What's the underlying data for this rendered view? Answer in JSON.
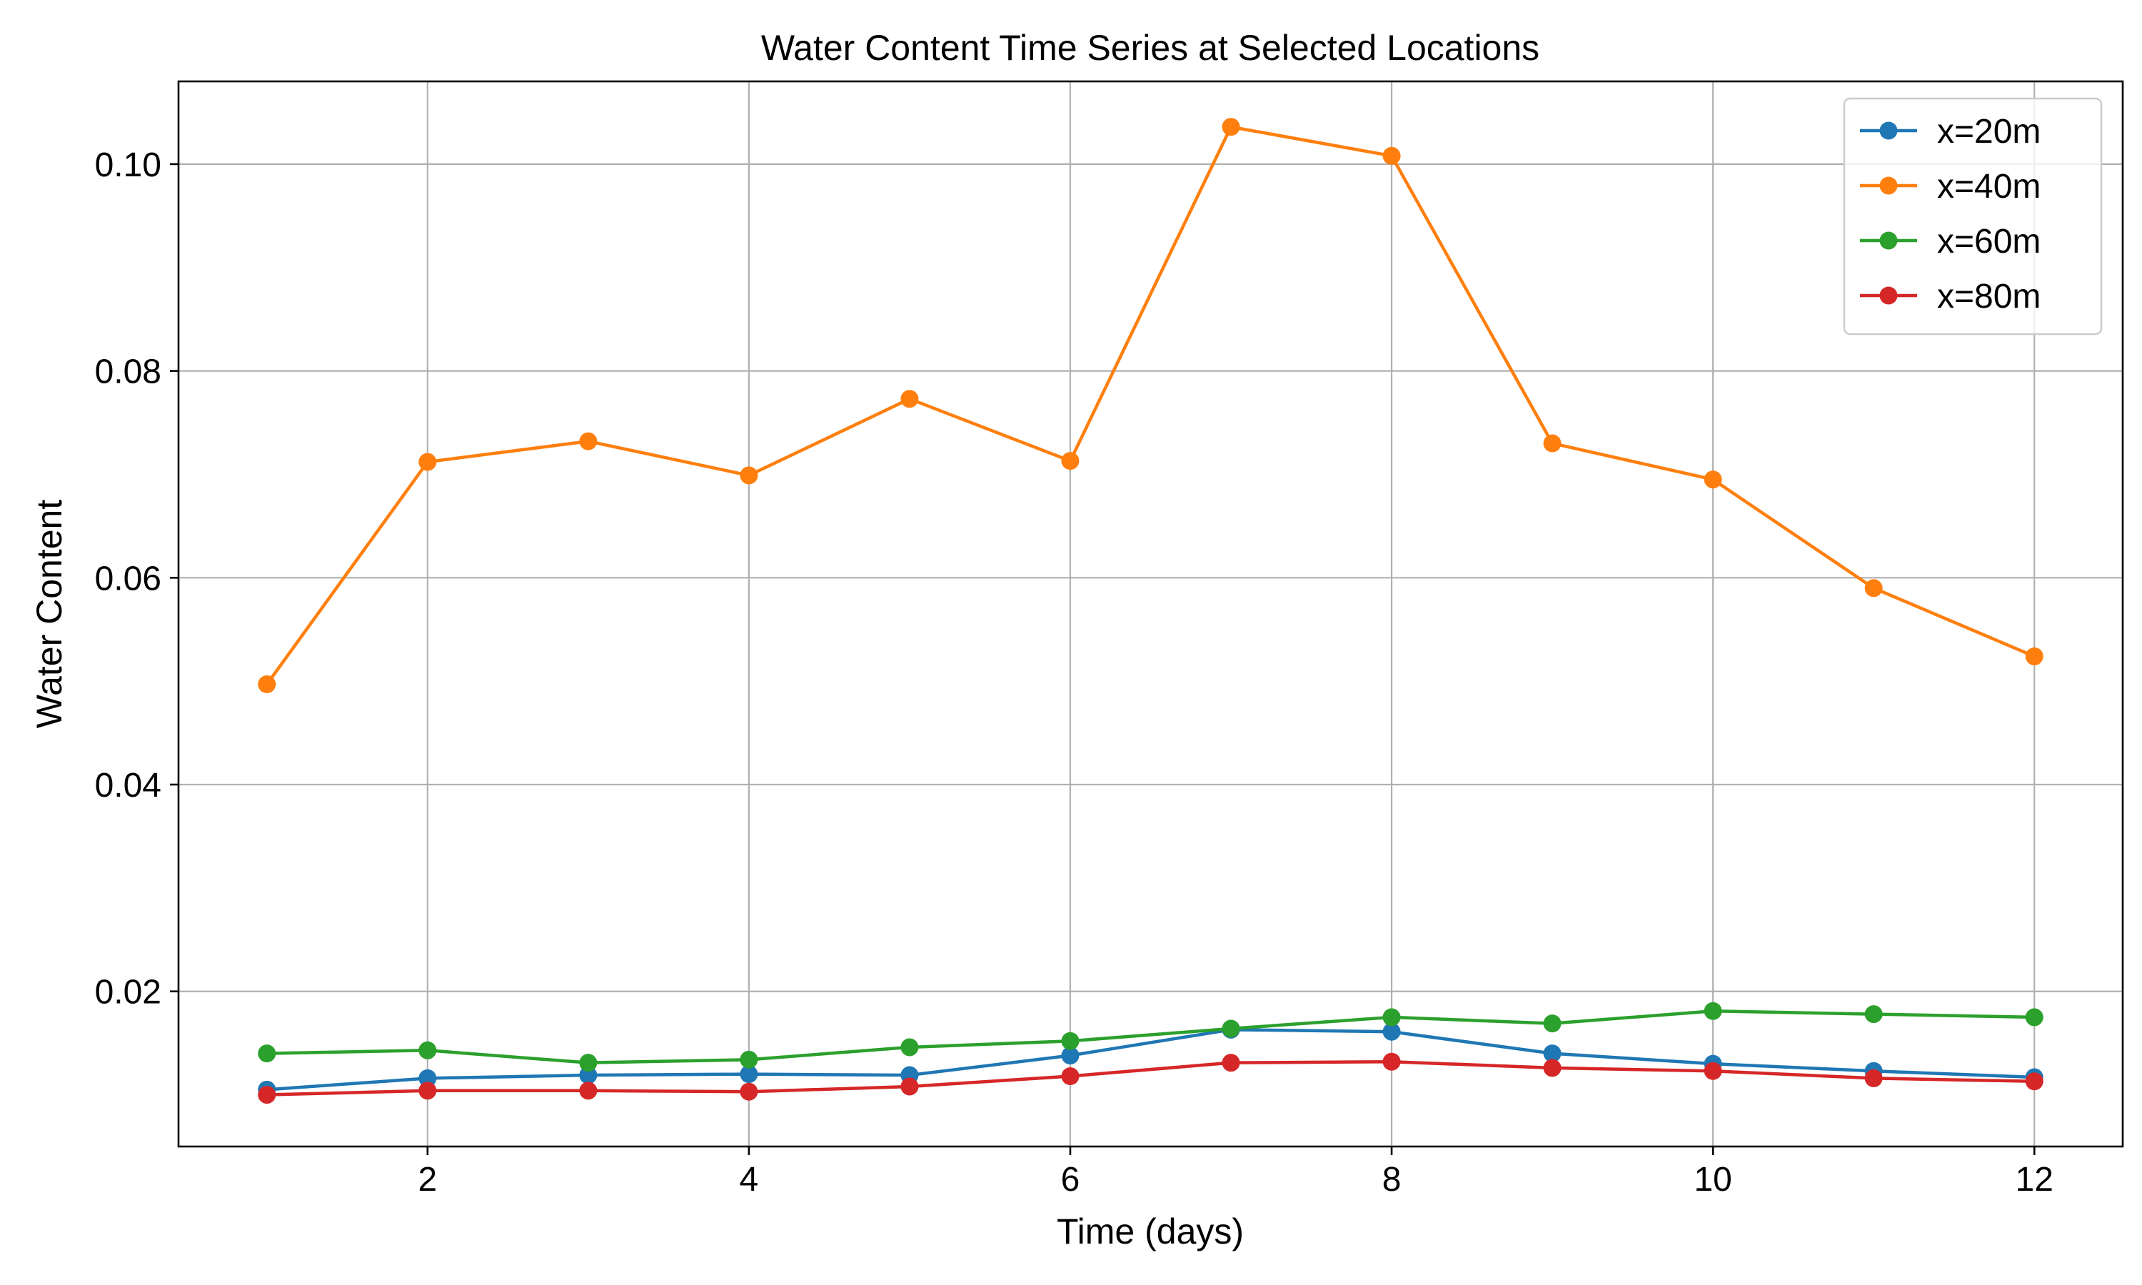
{
  "chart_data": {
    "type": "line",
    "title": "Water Content Time Series at Selected Locations",
    "xlabel": "Time (days)",
    "ylabel": "Water Content",
    "x": [
      1,
      2,
      3,
      4,
      5,
      6,
      7,
      8,
      9,
      10,
      11,
      12
    ],
    "xlim": [
      0.45,
      12.55
    ],
    "ylim": [
      0.005,
      0.108
    ],
    "x_ticks": [
      2,
      4,
      6,
      8,
      10,
      12
    ],
    "x_tick_labels": [
      "2",
      "4",
      "6",
      "8",
      "10",
      "12"
    ],
    "y_ticks": [
      0.02,
      0.04,
      0.06,
      0.08,
      0.1
    ],
    "y_tick_labels": [
      "0.02",
      "0.04",
      "0.06",
      "0.08",
      "0.10"
    ],
    "grid": true,
    "legend_position": "top-right",
    "series": [
      {
        "name": "x=20m",
        "color": "#1f77b4",
        "values": [
          0.0105,
          0.0116,
          0.0119,
          0.012,
          0.0119,
          0.0138,
          0.0163,
          0.0161,
          0.014,
          0.013,
          0.0123,
          0.0117
        ]
      },
      {
        "name": "x=40m",
        "color": "#ff7f0e",
        "values": [
          0.0497,
          0.0712,
          0.0732,
          0.0699,
          0.0773,
          0.0713,
          0.1036,
          0.1008,
          0.073,
          0.0695,
          0.059,
          0.0524
        ]
      },
      {
        "name": "x=60m",
        "color": "#2ca02c",
        "values": [
          0.014,
          0.0143,
          0.0131,
          0.0134,
          0.0146,
          0.0152,
          0.0164,
          0.0175,
          0.0169,
          0.0181,
          0.0178,
          0.0175
        ]
      },
      {
        "name": "x=80m",
        "color": "#d62728",
        "values": [
          0.01,
          0.0104,
          0.0104,
          0.0103,
          0.0108,
          0.0118,
          0.0131,
          0.0132,
          0.0126,
          0.0123,
          0.0116,
          0.0113
        ]
      }
    ]
  }
}
